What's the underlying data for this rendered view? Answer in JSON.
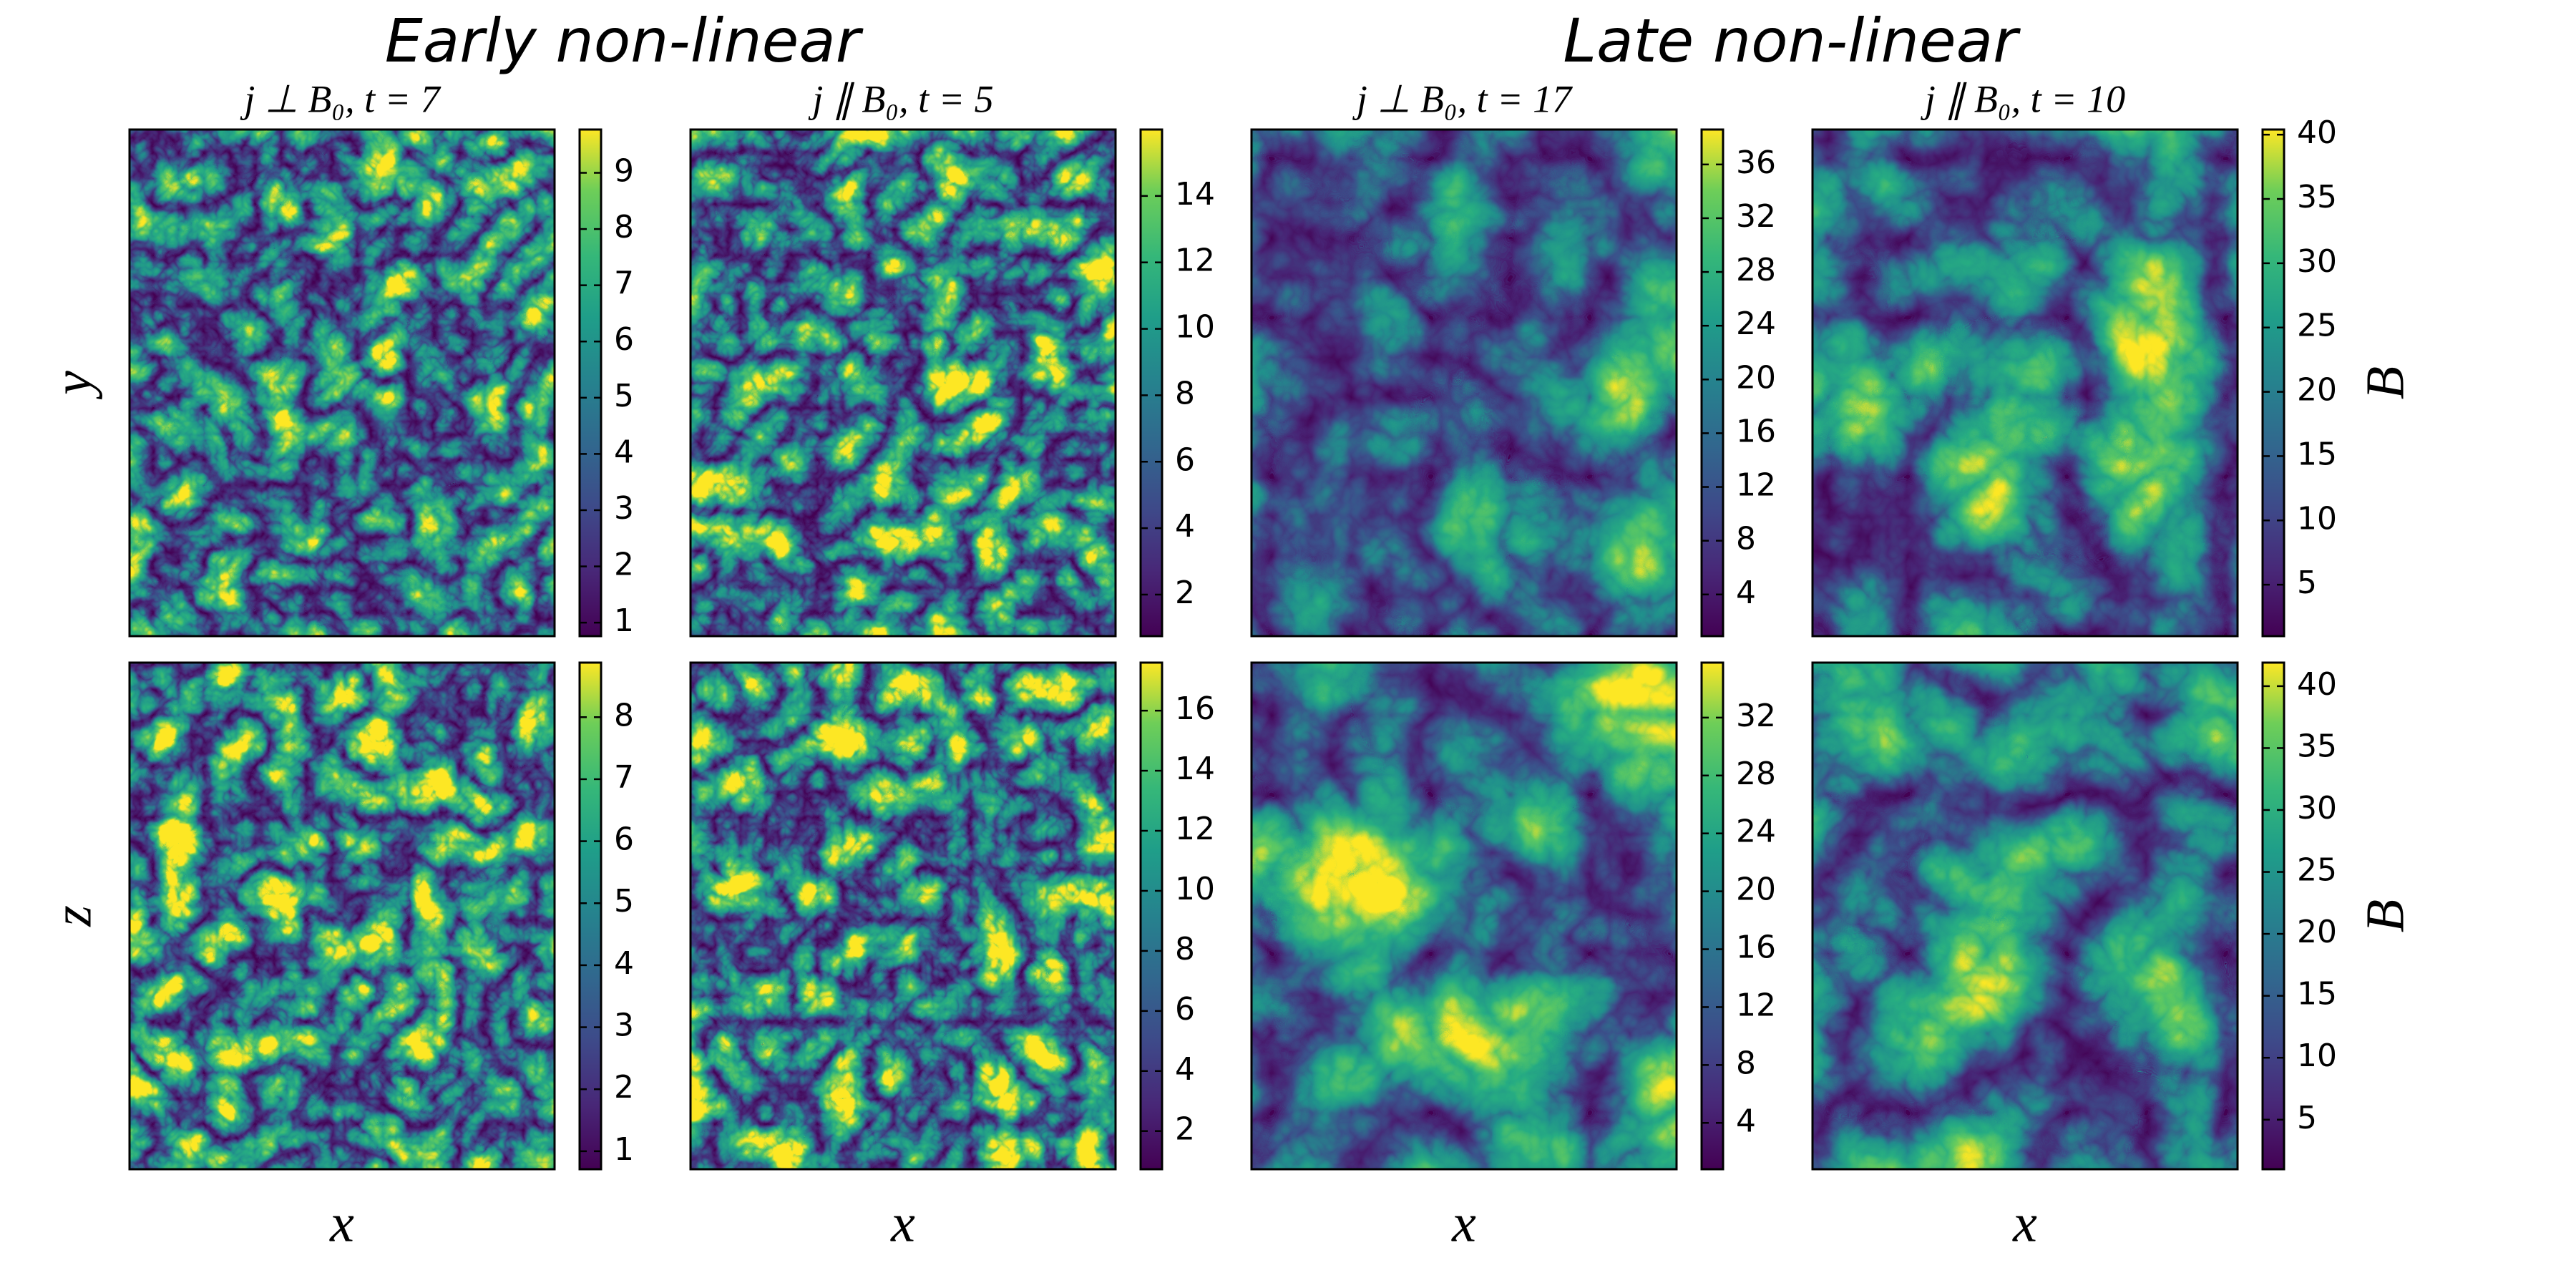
{
  "titles": [
    "Early non-linear",
    "Late non-linear"
  ],
  "chart_data": [
    {
      "type": "heatmap",
      "title": "j ⊥ B₀, t = 7",
      "ylabel": "y",
      "clim": [
        0.76,
        9.77
      ],
      "colorbar_ticks": [
        1,
        2,
        3,
        4,
        5,
        6,
        7,
        8,
        9
      ]
    },
    {
      "type": "heatmap",
      "title": "j ∥ B₀, t = 5",
      "clim": [
        0.75,
        16
      ],
      "colorbar_ticks": [
        2,
        4,
        6,
        8,
        10,
        12,
        14
      ]
    },
    {
      "type": "heatmap",
      "title": "j ⊥ B₀, t = 17",
      "clim": [
        0.9,
        38.6
      ],
      "colorbar_ticks": [
        4,
        8,
        12,
        16,
        20,
        24,
        28,
        32,
        36
      ]
    },
    {
      "type": "heatmap",
      "title": "j ∥ B₀, t = 10",
      "colorbar_label": "B",
      "clim": [
        1.0,
        40.4
      ],
      "colorbar_ticks": [
        5,
        10,
        15,
        20,
        25,
        30,
        35,
        40
      ]
    },
    {
      "type": "heatmap",
      "ylabel": "z",
      "xlabel": "x",
      "clim": [
        0.71,
        8.88
      ],
      "colorbar_ticks": [
        1,
        2,
        3,
        4,
        5,
        6,
        7,
        8
      ]
    },
    {
      "type": "heatmap",
      "xlabel": "x",
      "clim": [
        0.73,
        17.6
      ],
      "colorbar_ticks": [
        2,
        4,
        6,
        8,
        10,
        12,
        14,
        16
      ]
    },
    {
      "type": "heatmap",
      "xlabel": "x",
      "clim": [
        0.8,
        35.8
      ],
      "colorbar_ticks": [
        4,
        8,
        12,
        16,
        20,
        24,
        28,
        32
      ]
    },
    {
      "type": "heatmap",
      "xlabel": "x",
      "colorbar_label": "B",
      "clim": [
        1.0,
        41.9
      ],
      "colorbar_ticks": [
        5,
        10,
        15,
        20,
        25,
        30,
        35,
        40
      ]
    }
  ]
}
